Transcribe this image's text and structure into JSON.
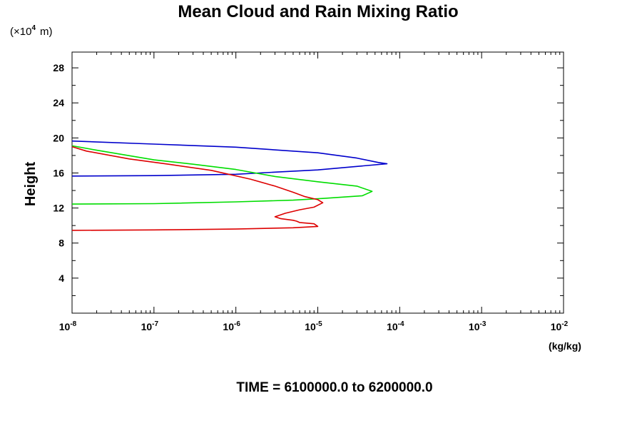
{
  "chart_data": {
    "type": "line",
    "title": "Mean Cloud and Rain Mixing Ratio",
    "ylabel": "Height",
    "yunits_prefix": "(×10",
    "yunits_exp": "4",
    "yunits_suffix": "m)",
    "xunits": "(kg/kg)",
    "footer": "TIME = 6100000.0 to 6200000.0",
    "xscale": "log",
    "xlim": [
      1e-08,
      0.01
    ],
    "ylim": [
      0,
      29.8
    ],
    "grid": false,
    "x_tick_base": "10",
    "x_tick_exponents": [
      "-8",
      "-7",
      "-6",
      "-5",
      "-4",
      "-3",
      "-2"
    ],
    "y_ticks": [
      "4",
      "8",
      "12",
      "16",
      "20",
      "24",
      "28"
    ],
    "series": [
      {
        "color": "#0000cc",
        "points": [
          [
            1e-08,
            15.65
          ],
          [
            1e-07,
            15.7
          ],
          [
            1e-06,
            15.85
          ],
          [
            3e-06,
            16.1
          ],
          [
            1e-05,
            16.35
          ],
          [
            3e-05,
            16.75
          ],
          [
            7e-05,
            17.05
          ],
          [
            5.5e-05,
            17.2
          ],
          [
            3e-05,
            17.7
          ],
          [
            1e-05,
            18.3
          ],
          [
            1e-06,
            18.95
          ],
          [
            1e-07,
            19.3
          ],
          [
            1e-08,
            19.65
          ]
        ]
      },
      {
        "color": "#00dd00",
        "points": [
          [
            1e-08,
            12.45
          ],
          [
            1e-07,
            12.5
          ],
          [
            1e-06,
            12.7
          ],
          [
            5e-06,
            12.9
          ],
          [
            1.2e-05,
            13.1
          ],
          [
            3.5e-05,
            13.4
          ],
          [
            4.6e-05,
            13.9
          ],
          [
            3e-05,
            14.5
          ],
          [
            1e-05,
            15.0
          ],
          [
            3e-06,
            15.6
          ],
          [
            1e-06,
            16.4
          ],
          [
            3e-07,
            17.0
          ],
          [
            1e-07,
            17.5
          ],
          [
            2e-08,
            18.6
          ],
          [
            1e-08,
            19.1
          ]
        ]
      },
      {
        "color": "#dd0000",
        "points": [
          [
            1e-08,
            9.45
          ],
          [
            1e-07,
            9.5
          ],
          [
            1e-06,
            9.6
          ],
          [
            5e-06,
            9.75
          ],
          [
            1e-05,
            9.9
          ],
          [
            9e-06,
            10.2
          ],
          [
            6e-06,
            10.35
          ],
          [
            5.5e-06,
            10.5
          ],
          [
            5e-06,
            10.6
          ],
          [
            3.5e-06,
            10.8
          ],
          [
            3e-06,
            11.0
          ],
          [
            4e-06,
            11.4
          ],
          [
            6e-06,
            11.8
          ],
          [
            9e-06,
            12.1
          ],
          [
            1.15e-05,
            12.6
          ],
          [
            1e-05,
            12.95
          ],
          [
            7e-06,
            13.3
          ],
          [
            5e-06,
            13.8
          ],
          [
            3e-06,
            14.5
          ],
          [
            1.5e-06,
            15.3
          ],
          [
            5e-07,
            16.3
          ],
          [
            1.5e-07,
            17.0
          ],
          [
            5e-08,
            17.6
          ],
          [
            1.5e-08,
            18.5
          ],
          [
            1e-08,
            19.0
          ]
        ]
      }
    ]
  }
}
